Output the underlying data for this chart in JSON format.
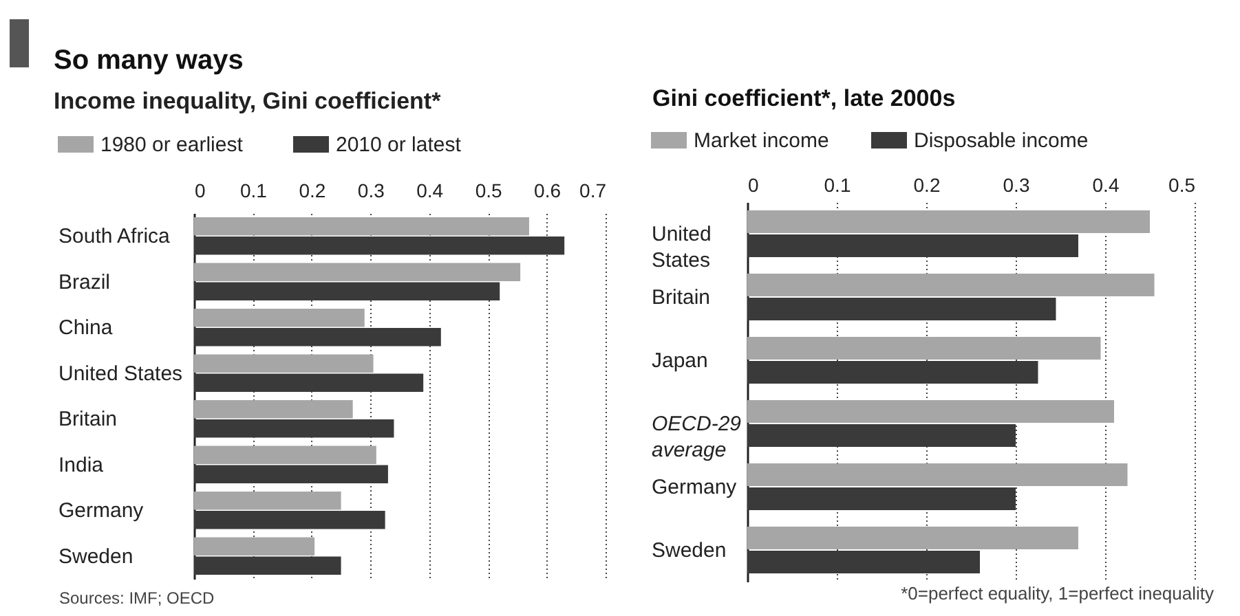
{
  "chart_data": [
    {
      "type": "bar",
      "orientation": "horizontal",
      "title": "So many ways",
      "subtitle": "Income inequality, Gini coefficient*",
      "categories": [
        "South Africa",
        "Brazil",
        "China",
        "United States",
        "Britain",
        "India",
        "Germany",
        "Sweden"
      ],
      "series": [
        {
          "name": "1980 or earliest",
          "color": "#a6a6a6",
          "values": [
            0.57,
            0.555,
            0.29,
            0.305,
            0.27,
            0.31,
            0.25,
            0.205
          ]
        },
        {
          "name": "2010 or latest",
          "color": "#3a3a3a",
          "values": [
            0.63,
            0.52,
            0.42,
            0.39,
            0.34,
            0.33,
            0.325,
            0.25
          ]
        }
      ],
      "xlim": [
        0,
        0.7
      ],
      "xticks": [
        0,
        0.1,
        0.2,
        0.3,
        0.4,
        0.5,
        0.6,
        0.7
      ],
      "grid": "x",
      "legend": "top left",
      "annotations": [
        "Sources: IMF; OECD"
      ]
    },
    {
      "type": "bar",
      "orientation": "horizontal",
      "title": "Gini coefficient*, late 2000s",
      "categories": [
        "United States",
        "Britain",
        "Japan",
        "OECD-29 average",
        "Germany",
        "Sweden"
      ],
      "series": [
        {
          "name": "Market income",
          "color": "#a6a6a6",
          "values": [
            0.45,
            0.455,
            0.395,
            0.41,
            0.425,
            0.37
          ]
        },
        {
          "name": "Disposable income",
          "color": "#3a3a3a",
          "values": [
            0.37,
            0.345,
            0.325,
            0.3,
            0.3,
            0.26
          ]
        }
      ],
      "xlim": [
        0,
        0.5
      ],
      "xticks": [
        0,
        0.1,
        0.2,
        0.3,
        0.4,
        0.5
      ],
      "grid": "x",
      "legend": "top left",
      "annotations": [
        "*0=perfect equality, 1=perfect inequality"
      ]
    }
  ]
}
